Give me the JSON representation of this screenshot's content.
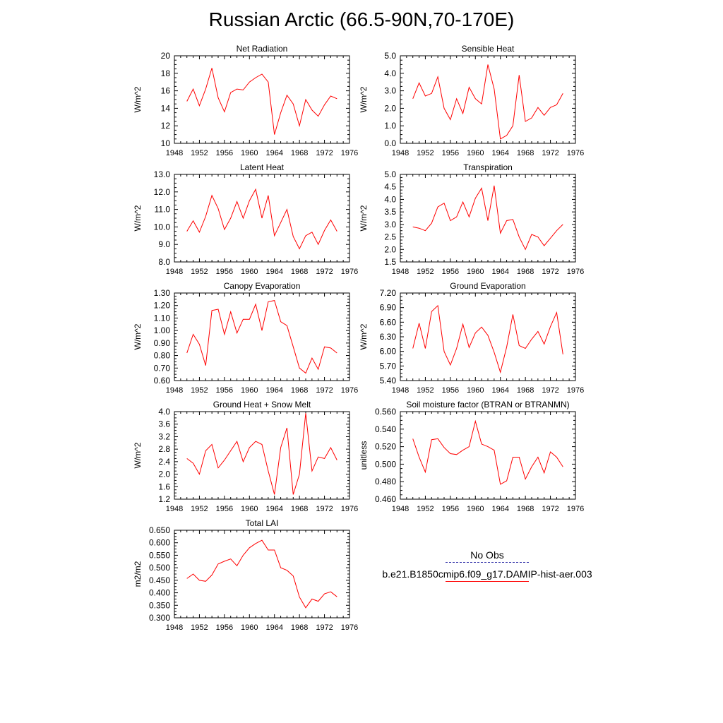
{
  "title": "Russian Arctic (66.5-90N,70-170E)",
  "legend": {
    "obs_label": "No Obs",
    "obs_color": "#3333aa",
    "model_label": "b.e21.B1850cmip6.f09_g17.DAMIP-hist-aer.003",
    "model_color": "#ff0000"
  },
  "chart_data": [
    {
      "type": "line",
      "title": "Net Radiation",
      "ylabel": "W/m^2",
      "xlim": [
        1948,
        1976
      ],
      "ylim": [
        10,
        20
      ],
      "xticks": [
        "1948",
        "1952",
        "1956",
        "1960",
        "1964",
        "1968",
        "1972",
        "1976"
      ],
      "yticks": [
        "10",
        "12",
        "14",
        "16",
        "18",
        "20"
      ],
      "series": [
        {
          "color": "#ff0000",
          "x": [
            1950,
            1951,
            1952,
            1953,
            1954,
            1955,
            1956,
            1957,
            1958,
            1959,
            1960,
            1961,
            1962,
            1963,
            1964,
            1965,
            1966,
            1967,
            1968,
            1969,
            1970,
            1971,
            1972,
            1973,
            1974
          ],
          "values": [
            14.8,
            16.2,
            14.3,
            16.2,
            18.6,
            15.2,
            13.6,
            15.8,
            16.2,
            16.1,
            17.0,
            17.5,
            17.9,
            17.0,
            11.0,
            13.5,
            15.5,
            14.5,
            12.0,
            15.0,
            13.8,
            13.1,
            14.4,
            15.4,
            15.1
          ]
        }
      ]
    },
    {
      "type": "line",
      "title": "Sensible Heat",
      "ylabel": "W/m^2",
      "xlim": [
        1948,
        1976
      ],
      "ylim": [
        0,
        5
      ],
      "xticks": [
        "1948",
        "1952",
        "1956",
        "1960",
        "1964",
        "1968",
        "1972",
        "1976"
      ],
      "yticks": [
        "0.0",
        "1.0",
        "2.0",
        "3.0",
        "4.0",
        "5.0"
      ],
      "series": [
        {
          "color": "#ff0000",
          "x": [
            1950,
            1951,
            1952,
            1953,
            1954,
            1955,
            1956,
            1957,
            1958,
            1959,
            1960,
            1961,
            1962,
            1963,
            1964,
            1965,
            1966,
            1967,
            1968,
            1969,
            1970,
            1971,
            1972,
            1973,
            1974
          ],
          "values": [
            2.55,
            3.45,
            2.7,
            2.85,
            3.8,
            2.0,
            1.35,
            2.55,
            1.7,
            3.2,
            2.55,
            2.25,
            4.5,
            3.1,
            0.25,
            0.45,
            1.0,
            3.9,
            1.25,
            1.45,
            2.05,
            1.6,
            2.05,
            2.2,
            2.85
          ]
        }
      ]
    },
    {
      "type": "line",
      "title": "Latent Heat",
      "ylabel": "W/m^2",
      "xlim": [
        1948,
        1976
      ],
      "ylim": [
        8,
        13
      ],
      "xticks": [
        "1948",
        "1952",
        "1956",
        "1960",
        "1964",
        "1968",
        "1972",
        "1976"
      ],
      "yticks": [
        "8.0",
        "9.0",
        "10.0",
        "11.0",
        "12.0",
        "13.0"
      ],
      "series": [
        {
          "color": "#ff0000",
          "x": [
            1950,
            1951,
            1952,
            1953,
            1954,
            1955,
            1956,
            1957,
            1958,
            1959,
            1960,
            1961,
            1962,
            1963,
            1964,
            1965,
            1966,
            1967,
            1968,
            1969,
            1970,
            1971,
            1972,
            1973,
            1974
          ],
          "values": [
            9.75,
            10.35,
            9.7,
            10.6,
            11.8,
            11.05,
            9.85,
            10.5,
            11.45,
            10.5,
            11.5,
            12.15,
            10.5,
            11.8,
            9.5,
            10.25,
            11.0,
            9.45,
            8.75,
            9.5,
            9.7,
            9.0,
            9.8,
            10.4,
            9.75
          ]
        }
      ]
    },
    {
      "type": "line",
      "title": "Transpiration",
      "ylabel": "W/m^2",
      "xlim": [
        1948,
        1976
      ],
      "ylim": [
        1.5,
        5
      ],
      "xticks": [
        "1948",
        "1952",
        "1956",
        "1960",
        "1964",
        "1968",
        "1972",
        "1976"
      ],
      "yticks": [
        "1.5",
        "2.0",
        "2.5",
        "3.0",
        "3.5",
        "4.0",
        "4.5",
        "5.0"
      ],
      "series": [
        {
          "color": "#ff0000",
          "x": [
            1950,
            1951,
            1952,
            1953,
            1954,
            1955,
            1956,
            1957,
            1958,
            1959,
            1960,
            1961,
            1962,
            1963,
            1964,
            1965,
            1966,
            1967,
            1968,
            1969,
            1970,
            1971,
            1972,
            1973,
            1974
          ],
          "values": [
            2.9,
            2.85,
            2.75,
            3.05,
            3.7,
            3.85,
            3.15,
            3.3,
            3.9,
            3.3,
            4.05,
            4.45,
            3.15,
            4.55,
            2.65,
            3.15,
            3.2,
            2.5,
            2.0,
            2.6,
            2.5,
            2.15,
            2.45,
            2.75,
            3.0
          ]
        }
      ]
    },
    {
      "type": "line",
      "title": "Canopy Evaporation",
      "ylabel": "W/m^2",
      "xlim": [
        1948,
        1976
      ],
      "ylim": [
        0.6,
        1.3
      ],
      "xticks": [
        "1948",
        "1952",
        "1956",
        "1960",
        "1964",
        "1968",
        "1972",
        "1976"
      ],
      "yticks": [
        "0.60",
        "0.70",
        "0.80",
        "0.90",
        "1.00",
        "1.10",
        "1.20",
        "1.30"
      ],
      "series": [
        {
          "color": "#ff0000",
          "x": [
            1950,
            1951,
            1952,
            1953,
            1954,
            1955,
            1956,
            1957,
            1958,
            1959,
            1960,
            1961,
            1962,
            1963,
            1964,
            1965,
            1966,
            1967,
            1968,
            1969,
            1970,
            1971,
            1972,
            1973,
            1974
          ],
          "values": [
            0.82,
            0.97,
            0.89,
            0.72,
            1.16,
            1.17,
            0.97,
            1.15,
            0.98,
            1.09,
            1.09,
            1.21,
            1.0,
            1.23,
            1.24,
            1.07,
            1.04,
            0.87,
            0.7,
            0.66,
            0.78,
            0.69,
            0.87,
            0.86,
            0.82
          ]
        }
      ]
    },
    {
      "type": "line",
      "title": "Ground Evaporation",
      "ylabel": "W/m^2",
      "xlim": [
        1948,
        1976
      ],
      "ylim": [
        5.4,
        7.2
      ],
      "xticks": [
        "1948",
        "1952",
        "1956",
        "1960",
        "1964",
        "1968",
        "1972",
        "1976"
      ],
      "yticks": [
        "5.40",
        "5.70",
        "6.00",
        "6.30",
        "6.60",
        "6.90",
        "7.20"
      ],
      "series": [
        {
          "color": "#ff0000",
          "x": [
            1950,
            1951,
            1952,
            1953,
            1954,
            1955,
            1956,
            1957,
            1958,
            1959,
            1960,
            1961,
            1962,
            1963,
            1964,
            1965,
            1966,
            1967,
            1968,
            1969,
            1970,
            1971,
            1972,
            1973,
            1974
          ],
          "values": [
            6.06,
            6.58,
            6.06,
            6.82,
            6.94,
            6.0,
            5.72,
            6.06,
            6.56,
            6.08,
            6.38,
            6.5,
            6.33,
            5.98,
            5.57,
            6.09,
            6.76,
            6.12,
            6.06,
            6.25,
            6.41,
            6.15,
            6.51,
            6.8,
            5.94
          ]
        }
      ]
    },
    {
      "type": "line",
      "title": "Ground Heat + Snow Melt",
      "ylabel": "W/m^2",
      "xlim": [
        1948,
        1976
      ],
      "ylim": [
        1.2,
        4.0
      ],
      "xticks": [
        "1948",
        "1952",
        "1956",
        "1960",
        "1964",
        "1968",
        "1972",
        "1976"
      ],
      "yticks": [
        "1.2",
        "1.6",
        "2.0",
        "2.4",
        "2.8",
        "3.2",
        "3.6",
        "4.0"
      ],
      "series": [
        {
          "color": "#ff0000",
          "x": [
            1950,
            1951,
            1952,
            1953,
            1954,
            1955,
            1956,
            1957,
            1958,
            1959,
            1960,
            1961,
            1962,
            1963,
            1964,
            1965,
            1966,
            1967,
            1968,
            1969,
            1970,
            1971,
            1972,
            1973,
            1974
          ],
          "values": [
            2.5,
            2.35,
            2.0,
            2.75,
            2.95,
            2.2,
            2.45,
            2.75,
            3.05,
            2.4,
            2.85,
            3.05,
            2.95,
            2.1,
            1.35,
            2.85,
            3.48,
            1.35,
            2.0,
            3.95,
            2.1,
            2.55,
            2.5,
            2.85,
            2.45
          ]
        }
      ]
    },
    {
      "type": "line",
      "title": "Soil moisture factor (BTRAN or BTRANMN)",
      "ylabel": "unitless",
      "xlim": [
        1948,
        1976
      ],
      "ylim": [
        0.46,
        0.56
      ],
      "xticks": [
        "1948",
        "1952",
        "1956",
        "1960",
        "1964",
        "1968",
        "1972",
        "1976"
      ],
      "yticks": [
        "0.460",
        "0.480",
        "0.500",
        "0.520",
        "0.540",
        "0.560"
      ],
      "series": [
        {
          "color": "#ff0000",
          "x": [
            1950,
            1951,
            1952,
            1953,
            1954,
            1955,
            1956,
            1957,
            1958,
            1959,
            1960,
            1961,
            1962,
            1963,
            1964,
            1965,
            1966,
            1967,
            1968,
            1969,
            1970,
            1971,
            1972,
            1973,
            1974
          ],
          "values": [
            0.529,
            0.508,
            0.491,
            0.528,
            0.529,
            0.519,
            0.512,
            0.511,
            0.516,
            0.52,
            0.549,
            0.523,
            0.52,
            0.516,
            0.477,
            0.481,
            0.508,
            0.508,
            0.483,
            0.497,
            0.508,
            0.49,
            0.514,
            0.508,
            0.497
          ]
        }
      ]
    },
    {
      "type": "line",
      "title": "Total LAI",
      "ylabel": "m2/m2",
      "xlim": [
        1948,
        1976
      ],
      "ylim": [
        0.3,
        0.65
      ],
      "xticks": [
        "1948",
        "1952",
        "1956",
        "1960",
        "1964",
        "1968",
        "1972",
        "1976"
      ],
      "yticks": [
        "0.300",
        "0.350",
        "0.400",
        "0.450",
        "0.500",
        "0.550",
        "0.600",
        "0.650"
      ],
      "series": [
        {
          "color": "#ff0000",
          "x": [
            1950,
            1951,
            1952,
            1953,
            1954,
            1955,
            1956,
            1957,
            1958,
            1959,
            1960,
            1961,
            1962,
            1963,
            1964,
            1965,
            1966,
            1967,
            1968,
            1969,
            1970,
            1971,
            1972,
            1973,
            1974
          ],
          "values": [
            0.457,
            0.475,
            0.45,
            0.446,
            0.471,
            0.515,
            0.526,
            0.535,
            0.508,
            0.55,
            0.58,
            0.597,
            0.61,
            0.571,
            0.571,
            0.5,
            0.49,
            0.467,
            0.383,
            0.34,
            0.375,
            0.366,
            0.396,
            0.404,
            0.384
          ]
        }
      ]
    }
  ]
}
